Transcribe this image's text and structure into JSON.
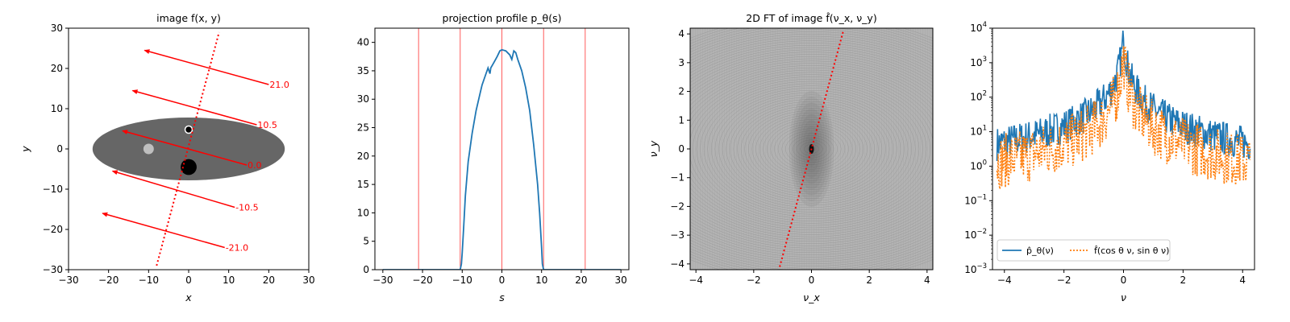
{
  "chart_data": [
    {
      "type": "image",
      "title": "image f(x, y)",
      "xlabel": "x",
      "ylabel": "y",
      "xlim": [
        -30,
        30
      ],
      "ylim": [
        -30,
        30
      ],
      "xticks": [
        -30,
        -20,
        -10,
        0,
        10,
        20,
        30
      ],
      "yticks": [
        -30,
        -20,
        -10,
        0,
        10,
        20,
        30
      ],
      "ellipse": {
        "cx": 0,
        "cy": 0,
        "rx": 24,
        "ry": 7.8,
        "fill": "#666666"
      },
      "circles": [
        {
          "cx": -10,
          "cy": 0,
          "r": 1.3,
          "fill": "#bfbfbf"
        },
        {
          "cx": 0,
          "cy": 4.8,
          "r": 0.7,
          "fill": "#000000",
          "ring": "#ffffff"
        },
        {
          "cx": 0,
          "cy": -4.5,
          "r": 2.0,
          "fill": "#000000"
        }
      ],
      "projection_line": {
        "from": [
          -8,
          -29
        ],
        "to": [
          7.6,
          29
        ],
        "color": "#ff0000"
      },
      "arrows": [
        {
          "label": "21.0",
          "from": [
            20,
            16
          ],
          "to": [
            -11,
            24.5
          ]
        },
        {
          "label": "10.5",
          "from": [
            17,
            6
          ],
          "to": [
            -14,
            14.5
          ]
        },
        {
          "label": "0.0",
          "from": [
            14.5,
            -4
          ],
          "to": [
            -16.5,
            4.5
          ]
        },
        {
          "label": "-10.5",
          "from": [
            11.5,
            -14.5
          ],
          "to": [
            -19,
            -5.5
          ]
        },
        {
          "label": "-21.0",
          "from": [
            9,
            -24.5
          ],
          "to": [
            -21.5,
            -16
          ]
        }
      ]
    },
    {
      "type": "line",
      "title": "projection profile p_θ(s)",
      "xlabel": "s",
      "ylabel": "",
      "xlim": [
        -32,
        32
      ],
      "ylim": [
        0,
        42.5
      ],
      "xticks": [
        -30,
        -20,
        -10,
        0,
        10,
        20,
        30
      ],
      "yticks": [
        0,
        5,
        10,
        15,
        20,
        25,
        30,
        35,
        40
      ],
      "vlines": [
        -21,
        -10.5,
        0,
        10.5,
        21
      ],
      "series": [
        {
          "color": "#1f77b4",
          "x": [
            -30,
            -10.5,
            -10.2,
            -10,
            -9.6,
            -9.2,
            -8.5,
            -7.5,
            -6.5,
            -5.5,
            -5,
            -4,
            -3.5,
            -3,
            -2.8,
            -2,
            -1.2,
            -0.5,
            0,
            1,
            2,
            2.5,
            3,
            3.5,
            4,
            5,
            6,
            7,
            8,
            9,
            9.5,
            10,
            10.2,
            10.5,
            30
          ],
          "y": [
            0,
            0,
            1,
            3,
            8,
            13,
            19,
            24,
            28,
            31,
            32.5,
            34.5,
            35.5,
            34.5,
            35.5,
            36.5,
            37.5,
            38.5,
            38.7,
            38.5,
            37.8,
            37,
            38.5,
            38.2,
            37,
            35,
            32,
            28,
            22,
            15,
            10,
            4,
            1,
            0,
            0
          ]
        }
      ]
    },
    {
      "type": "heatmap",
      "title": "2D FT of image f̂(ν_x, ν_y)",
      "xlabel": "ν_x",
      "ylabel": "ν_y",
      "xlim": [
        -4.2,
        4.2
      ],
      "ylim": [
        -4.2,
        4.2
      ],
      "xticks": [
        -4,
        -2,
        0,
        2,
        4
      ],
      "yticks": [
        -4,
        -3,
        -2,
        -1,
        0,
        1,
        2,
        3,
        4
      ],
      "slice_line": {
        "from": [
          -1.1,
          -4.1
        ],
        "to": [
          1.1,
          4.1
        ],
        "color": "#ff0000"
      }
    },
    {
      "type": "line",
      "title": "",
      "xlabel": "ν",
      "ylabel": "",
      "yscale": "log",
      "xlim": [
        -4.4,
        4.4
      ],
      "ylim": [
        0.001,
        10000
      ],
      "xticks": [
        -4,
        -2,
        0,
        2,
        4
      ],
      "yticks": [
        0.001,
        0.01,
        0.1,
        1,
        10,
        100,
        1000,
        10000
      ],
      "legend_position": "lower-left",
      "series": [
        {
          "name": "p̂_θ(ν)",
          "color": "#1f77b4",
          "style": "solid",
          "peak": 5000,
          "floor": 0.3
        },
        {
          "name": "f̂(cos θ ν, sin θ ν)",
          "color": "#ff7f0e",
          "style": "dotted",
          "peak": 3000,
          "floor": 0.05
        }
      ]
    }
  ],
  "colors": {
    "annotation": "#ff0000",
    "line_blue": "#1f77b4",
    "line_orange": "#ff7f0e",
    "ellipse_gray": "#666666"
  }
}
